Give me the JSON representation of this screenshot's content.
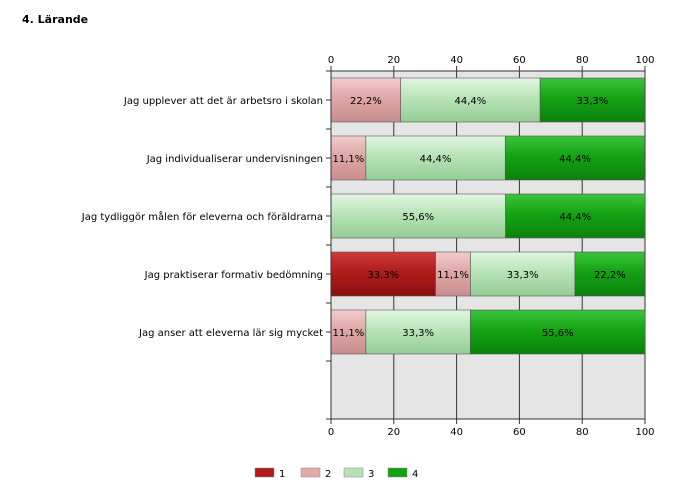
{
  "section_title": "4. Lärande",
  "chart_data": {
    "type": "bar",
    "orientation": "horizontal",
    "stacked": true,
    "xlim": [
      0,
      100
    ],
    "x_ticks": [
      0,
      20,
      40,
      60,
      80,
      100
    ],
    "grid": true,
    "legend_position": "bottom",
    "categories": [
      "Jag upplever att det är arbetsro i skolan",
      "Jag individualiserar undervisningen",
      "Jag tydliggör målen för eleverna och föräldrarna",
      "Jag praktiserar formativ bedömning",
      "Jag anser att eleverna lär sig mycket"
    ],
    "series": [
      {
        "name": "1",
        "color": "#b01c1c",
        "values": [
          0,
          0,
          0,
          33.3,
          0
        ],
        "labels": [
          "",
          "",
          "",
          "33,3%",
          ""
        ]
      },
      {
        "name": "2",
        "color": "#e3aaaa",
        "values": [
          22.2,
          11.1,
          0,
          11.1,
          11.1
        ],
        "labels": [
          "22,2%",
          "11,1%",
          "",
          "11,1%",
          "11,1%"
        ]
      },
      {
        "name": "3",
        "color": "#b5e3b5",
        "values": [
          44.4,
          44.4,
          55.6,
          33.3,
          33.3
        ],
        "labels": [
          "44,4%",
          "44,4%",
          "55,6%",
          "33,3%",
          "33,3%"
        ]
      },
      {
        "name": "4",
        "color": "#12a312",
        "values": [
          33.3,
          44.4,
          44.4,
          22.2,
          55.6
        ],
        "labels": [
          "33,3%",
          "44,4%",
          "44,4%",
          "22,2%",
          "55,6%"
        ]
      }
    ]
  }
}
